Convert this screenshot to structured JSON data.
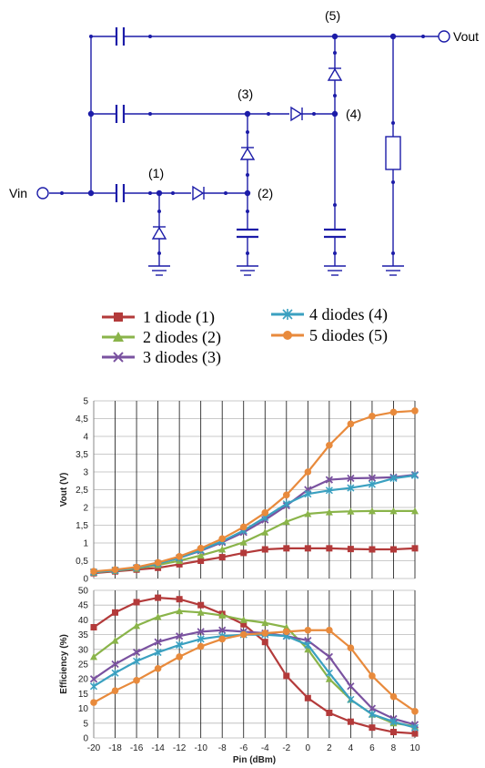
{
  "circuit": {
    "vin_label": "Vin",
    "vout_label": "Vout",
    "node_labels": [
      "(1)",
      "(2)",
      "(3)",
      "(4)",
      "(5)"
    ]
  },
  "legend": [
    {
      "label": "1 diode  (1)",
      "color": "#b33a3a",
      "marker": "square"
    },
    {
      "label": "2 diodes (2)",
      "color": "#8ab44a",
      "marker": "triangle"
    },
    {
      "label": "3 diodes (3)",
      "color": "#7a52a0",
      "marker": "x"
    },
    {
      "label": "4 diodes (4)",
      "color": "#3aa0c0",
      "marker": "star"
    },
    {
      "label": "5 diodes (5)",
      "color": "#e88a3c",
      "marker": "circle"
    }
  ],
  "chart_data": [
    {
      "type": "line",
      "ylabel": "Vout (V)",
      "xlabel": "",
      "ylim": [
        0,
        5
      ],
      "yticks": [
        "0",
        "0,5",
        "1",
        "1,5",
        "2",
        "2,5",
        "3",
        "3,5",
        "4",
        "4,5",
        "5"
      ],
      "x": [
        -20,
        -18,
        -16,
        -14,
        -12,
        -10,
        -8,
        -6,
        -4,
        -2,
        0,
        2,
        4,
        6,
        8,
        10
      ],
      "grid": true,
      "series": [
        {
          "name": "1 diode  (1)",
          "color": "#b33a3a",
          "marker": "square",
          "values": [
            0.15,
            0.2,
            0.25,
            0.3,
            0.4,
            0.5,
            0.6,
            0.72,
            0.82,
            0.85,
            0.85,
            0.85,
            0.83,
            0.82,
            0.82,
            0.85
          ]
        },
        {
          "name": "2 diodes (2)",
          "color": "#8ab44a",
          "marker": "triangle",
          "values": [
            0.17,
            0.22,
            0.28,
            0.38,
            0.5,
            0.65,
            0.82,
            1.02,
            1.3,
            1.6,
            1.82,
            1.87,
            1.89,
            1.9,
            1.9,
            1.9
          ]
        },
        {
          "name": "3 diodes (3)",
          "color": "#7a52a0",
          "marker": "x",
          "values": [
            0.18,
            0.23,
            0.3,
            0.42,
            0.58,
            0.78,
            1.02,
            1.3,
            1.65,
            2.05,
            2.5,
            2.78,
            2.82,
            2.83,
            2.85,
            2.92
          ]
        },
        {
          "name": "4 diodes (4)",
          "color": "#3aa0c0",
          "marker": "star",
          "values": [
            0.18,
            0.23,
            0.3,
            0.42,
            0.58,
            0.8,
            1.05,
            1.35,
            1.72,
            2.1,
            2.38,
            2.48,
            2.55,
            2.65,
            2.82,
            2.9
          ]
        },
        {
          "name": "5 diodes (5)",
          "color": "#e88a3c",
          "marker": "circle",
          "values": [
            0.2,
            0.25,
            0.32,
            0.45,
            0.62,
            0.85,
            1.12,
            1.45,
            1.85,
            2.35,
            3.0,
            3.75,
            4.35,
            4.57,
            4.68,
            4.72
          ]
        }
      ]
    },
    {
      "type": "line",
      "ylabel": "Efficiency (%)",
      "xlabel": "Pin (dBm)",
      "ylim": [
        0,
        50
      ],
      "yticks": [
        "0",
        "5",
        "10",
        "15",
        "20",
        "25",
        "30",
        "35",
        "40",
        "45",
        "50"
      ],
      "xticks": [
        "-20",
        "-18",
        "-16",
        "-14",
        "-12",
        "-10",
        "-8",
        "-6",
        "-4",
        "-2",
        "0",
        "2",
        "4",
        "6",
        "8",
        "10"
      ],
      "x": [
        -20,
        -18,
        -16,
        -14,
        -12,
        -10,
        -8,
        -6,
        -4,
        -2,
        0,
        2,
        4,
        6,
        8,
        10
      ],
      "grid": true,
      "series": [
        {
          "name": "1 diode  (1)",
          "color": "#b33a3a",
          "marker": "square",
          "values": [
            37.5,
            42.5,
            46,
            47.5,
            47,
            45,
            42,
            38.5,
            32.5,
            21,
            13.5,
            8.5,
            5.5,
            3.5,
            2,
            1.5
          ]
        },
        {
          "name": "2 diodes (2)",
          "color": "#8ab44a",
          "marker": "triangle",
          "values": [
            27.5,
            33,
            38,
            41,
            43,
            42.5,
            41.5,
            40,
            39,
            37.5,
            30,
            20,
            13,
            8,
            5,
            4
          ]
        },
        {
          "name": "3 diodes (3)",
          "color": "#7a52a0",
          "marker": "x",
          "values": [
            20,
            25,
            29,
            32.5,
            34.5,
            36,
            36.5,
            36,
            35.5,
            34.5,
            33,
            27.5,
            17.5,
            10,
            6.5,
            4.5
          ]
        },
        {
          "name": "4 diodes (4)",
          "color": "#3aa0c0",
          "marker": "star",
          "values": [
            17.5,
            22,
            26,
            29,
            31.5,
            33.5,
            34.5,
            35,
            35,
            34.5,
            31.5,
            22,
            13,
            8,
            5.5,
            3.5
          ]
        },
        {
          "name": "5 diodes (5)",
          "color": "#e88a3c",
          "marker": "circle",
          "values": [
            12,
            16,
            19.5,
            23.5,
            27.5,
            31,
            33.5,
            35,
            35.5,
            36,
            36.5,
            36.5,
            30.5,
            21,
            14,
            9
          ]
        }
      ]
    }
  ]
}
